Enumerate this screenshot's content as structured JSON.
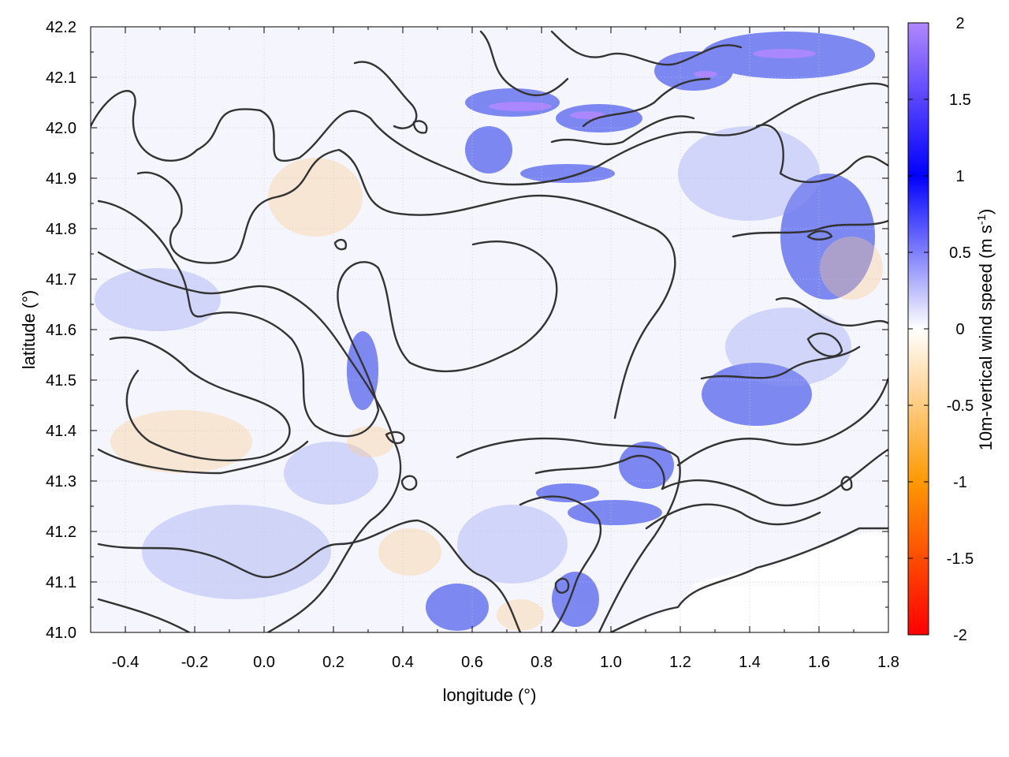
{
  "chart_data": {
    "type": "heatmap",
    "title": "",
    "xlabel": "longitude (°)",
    "ylabel": "latitude (°)",
    "xlim": [
      -0.5,
      1.8
    ],
    "ylim": [
      41.0,
      42.2
    ],
    "x_ticks": [
      "-0.4",
      "-0.2",
      "0.0",
      "0.2",
      "0.4",
      "0.6",
      "0.8",
      "1.0",
      "1.2",
      "1.4",
      "1.6",
      "1.8"
    ],
    "y_ticks": [
      "41.0",
      "41.1",
      "41.2",
      "41.3",
      "41.4",
      "41.5",
      "41.6",
      "41.7",
      "41.8",
      "41.9",
      "42.0",
      "42.1",
      "42.2"
    ],
    "grid": true,
    "overlay": "black terrain contour lines",
    "colorbar": {
      "label": "10m-vertical wind speed (m s-1)",
      "label_text": "10m-vertical wind speed (m s",
      "label_sup": "-1",
      "label_close": ")",
      "range": [
        -2,
        2
      ],
      "ticks": [
        "2",
        "1.5",
        "1",
        "0.5",
        "0",
        "-0.5",
        "-1",
        "-1.5",
        "-2"
      ],
      "colors": {
        "-2": "#ff0000",
        "-1": "#ff9900",
        "0": "#ffffff",
        "1": "#0000ff",
        "2": "#b088ff"
      }
    }
  }
}
